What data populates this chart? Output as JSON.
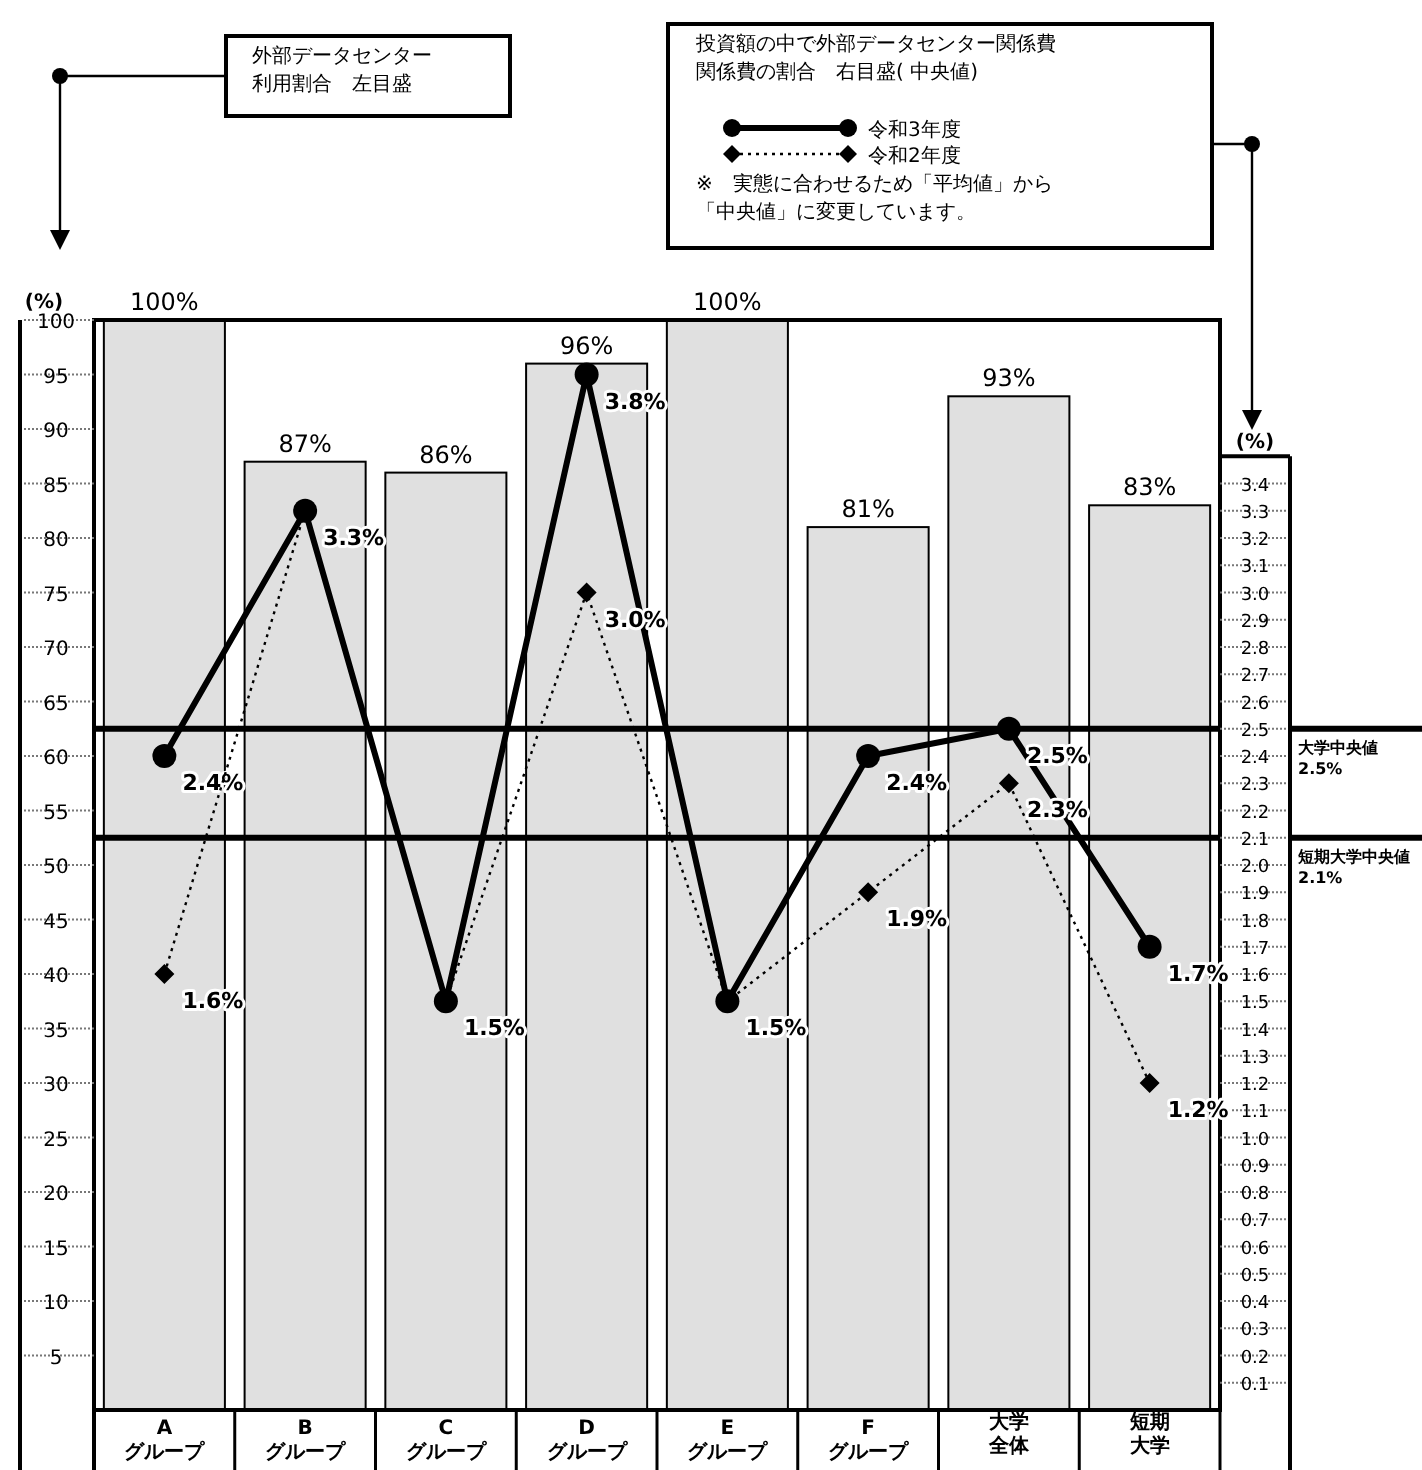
{
  "chart_data": {
    "type": "bar",
    "categories": [
      "A\nグループ",
      "B\nグループ",
      "C\nグループ",
      "D\nグループ",
      "E\nグループ",
      "F\nグループ",
      "大学全体",
      "短期大学"
    ],
    "series": [
      {
        "type": "bar",
        "color": "#e0e0e0",
        "values": [
          100,
          87,
          86,
          96,
          100,
          81,
          93,
          83
        ],
        "value_labels": [
          "100%",
          "87%",
          "86%",
          "96%",
          "100%",
          "81%",
          "93%",
          "83%"
        ]
      },
      {
        "type": "line",
        "name": "令和3年度",
        "axis": "y2",
        "color": "#000000",
        "marker": "circle",
        "line_style": "solid",
        "values": [
          2.4,
          3.3,
          1.5,
          3.8,
          1.5,
          2.4,
          2.5,
          1.7
        ],
        "value_labels": [
          "2.4%",
          "3.3%",
          "1.5%",
          "3.8%",
          "1.5%",
          "2.4%",
          "2.5%",
          "1.7%"
        ]
      },
      {
        "type": "line",
        "name": "令和2年度",
        "axis": "y2",
        "color": "#000000",
        "marker": "diamond",
        "line_style": "dotted",
        "values": [
          1.6,
          3.3,
          1.5,
          3.0,
          1.5,
          1.9,
          2.3,
          1.2
        ],
        "value_labels": [
          "1.6%",
          null,
          null,
          "3.0%",
          null,
          "1.9%",
          "2.3%",
          "1.2%"
        ]
      }
    ],
    "ylabel": "(%)",
    "y2label": "(%)",
    "ylim": [
      0,
      100
    ],
    "yticks": [
      5,
      10,
      15,
      20,
      25,
      30,
      35,
      40,
      45,
      50,
      55,
      60,
      65,
      70,
      75,
      80,
      85,
      90,
      95,
      100
    ],
    "y2lim": [
      0,
      4.0
    ],
    "y2ticks": [
      {
        "value": 0.1,
        "label": "0.1"
      },
      {
        "value": 0.2,
        "label": "0.2"
      },
      {
        "value": 0.3,
        "label": "0.3"
      },
      {
        "value": 0.4,
        "label": "0.4"
      },
      {
        "value": 0.5,
        "label": "0.5"
      },
      {
        "value": 0.6,
        "label": "0.6"
      },
      {
        "value": 0.7,
        "label": "0.7"
      },
      {
        "value": 0.8,
        "label": "0.8"
      },
      {
        "value": 0.9,
        "label": "0.9"
      },
      {
        "value": 1.0,
        "label": "1.0"
      },
      {
        "value": 1.1,
        "label": "1.1"
      },
      {
        "value": 1.2,
        "label": "1.2"
      },
      {
        "value": 1.3,
        "label": "1.3"
      },
      {
        "value": 1.4,
        "label": "1.4"
      },
      {
        "value": 1.5,
        "label": "1.5"
      },
      {
        "value": 1.6,
        "label": "1.6"
      },
      {
        "value": 1.7,
        "label": "1.7"
      },
      {
        "value": 1.8,
        "label": "1.8"
      },
      {
        "value": 1.9,
        "label": "1.9"
      },
      {
        "value": 2.0,
        "label": "2.0"
      },
      {
        "value": 2.1,
        "label": "2.1"
      },
      {
        "value": 2.2,
        "label": "2.2"
      },
      {
        "value": 2.3,
        "label": "2.3"
      },
      {
        "value": 2.4,
        "label": "2.4"
      },
      {
        "value": 2.5,
        "label": "2.5"
      },
      {
        "value": 2.6,
        "label": "2.6"
      },
      {
        "value": 2.7,
        "label": "2.7"
      },
      {
        "value": 2.8,
        "label": "2.8"
      },
      {
        "value": 2.9,
        "label": "2.9"
      },
      {
        "value": 3.0,
        "label": "3.0"
      },
      {
        "value": 3.1,
        "label": "3.1"
      },
      {
        "value": 3.2,
        "label": "3.2"
      },
      {
        "value": 3.3,
        "label": "3.3"
      },
      {
        "value": 3.4,
        "label": "3.4"
      }
    ],
    "ref_lines": [
      {
        "axis": "y2",
        "value": 2.5,
        "label": "大学中央値2.5%",
        "color": "#000000"
      },
      {
        "axis": "y2",
        "value": 2.1,
        "label": "短期大学中央値2.1%",
        "color": "#000000"
      }
    ],
    "legend": "top right",
    "annotations": [
      "外部データセンター利用割合　左目盛",
      "投資額の中で外部データセンター関係費関係費の割合　右目盛( 中央値)",
      "※　実態に合わせるため「平均値」から「中央値」に変更しています。"
    ]
  }
}
